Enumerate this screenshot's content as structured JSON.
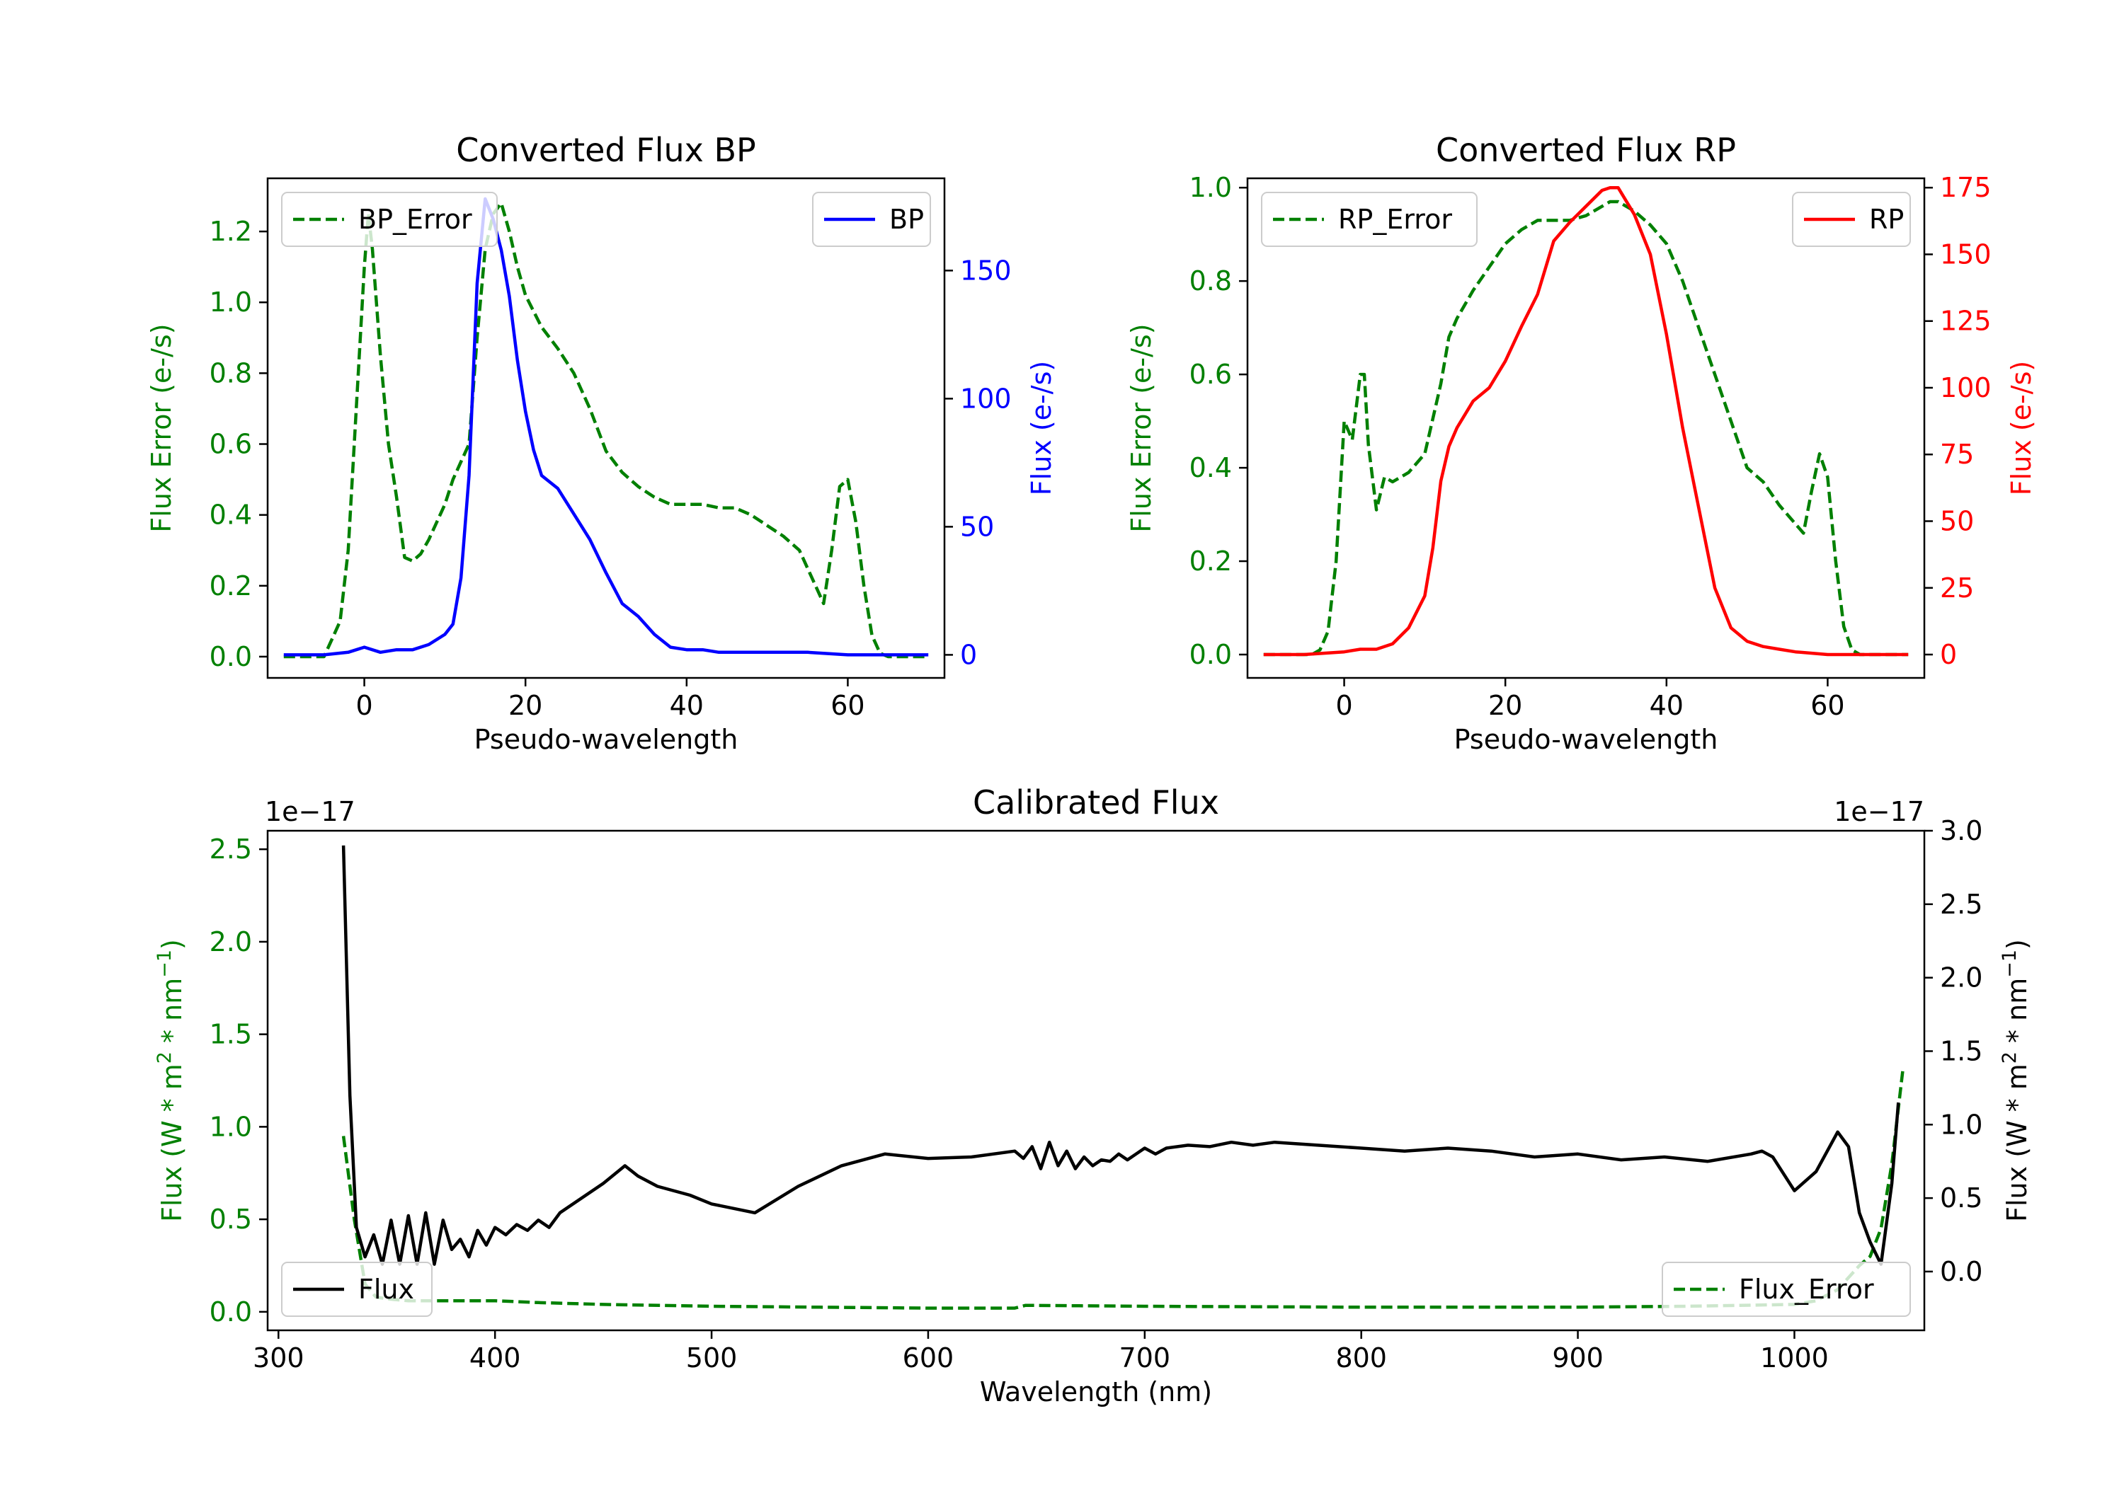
{
  "chart_data": [
    {
      "type": "line",
      "title": "Converted Flux BP",
      "xlabel": "Pseudo-wavelength",
      "xlim": [
        -12,
        72
      ],
      "xticks": [
        0,
        20,
        40,
        60
      ],
      "left_axis": {
        "label": "Flux Error (e-/s)",
        "color": "#008000",
        "ylim": [
          -0.06,
          1.35
        ],
        "ticks": [
          "0.0",
          "0.2",
          "0.4",
          "0.6",
          "0.8",
          "1.0",
          "1.2"
        ],
        "tick_values": [
          0,
          0.2,
          0.4,
          0.6,
          0.8,
          1.0,
          1.2
        ]
      },
      "right_axis": {
        "label": "Flux (e-/s)",
        "color": "#0000ff",
        "ylim": [
          -9,
          186
        ],
        "ticks": [
          "0",
          "50",
          "100",
          "150"
        ],
        "tick_values": [
          0,
          50,
          100,
          150
        ]
      },
      "series": [
        {
          "name": "BP_Error",
          "axis": "left",
          "color": "#008000",
          "style": "dashed",
          "x": [
            -10,
            -5,
            -3,
            -2,
            -1,
            0,
            0.5,
            1,
            2,
            3,
            4,
            5,
            6,
            7,
            8,
            9,
            10,
            11,
            12,
            13,
            14,
            15,
            16,
            17,
            18,
            19,
            20,
            22,
            24,
            26,
            28,
            30,
            32,
            34,
            36,
            38,
            40,
            42,
            44,
            46,
            48,
            50,
            52,
            54,
            56,
            57,
            58,
            59,
            60,
            61,
            62,
            63,
            64,
            65,
            70
          ],
          "values": [
            0,
            0,
            0.1,
            0.3,
            0.7,
            1.1,
            1.25,
            1.15,
            0.85,
            0.6,
            0.45,
            0.28,
            0.27,
            0.29,
            0.33,
            0.38,
            0.43,
            0.5,
            0.55,
            0.6,
            0.9,
            1.15,
            1.25,
            1.28,
            1.2,
            1.1,
            1.02,
            0.93,
            0.87,
            0.8,
            0.7,
            0.58,
            0.52,
            0.48,
            0.45,
            0.43,
            0.43,
            0.43,
            0.42,
            0.42,
            0.4,
            0.37,
            0.34,
            0.3,
            0.2,
            0.15,
            0.3,
            0.48,
            0.5,
            0.38,
            0.2,
            0.06,
            0.01,
            0,
            0
          ]
        },
        {
          "name": "BP",
          "axis": "right",
          "color": "#0000ff",
          "style": "solid",
          "x": [
            -10,
            -5,
            -2,
            0,
            2,
            4,
            6,
            8,
            10,
            11,
            12,
            13,
            14,
            15,
            16,
            17,
            18,
            19,
            20,
            21,
            22,
            24,
            26,
            28,
            30,
            32,
            34,
            36,
            38,
            40,
            42,
            44,
            46,
            48,
            50,
            55,
            60,
            65,
            70
          ],
          "values": [
            0,
            0,
            1,
            3,
            1,
            2,
            2,
            4,
            8,
            12,
            30,
            70,
            145,
            178,
            170,
            158,
            140,
            115,
            95,
            80,
            70,
            65,
            55,
            45,
            32,
            20,
            15,
            8,
            3,
            2,
            2,
            1,
            1,
            1,
            1,
            1,
            0,
            0,
            0
          ]
        }
      ],
      "legend": [
        {
          "label": "BP_Error",
          "placement": "upper left"
        },
        {
          "label": "BP",
          "placement": "upper right"
        }
      ]
    },
    {
      "type": "line",
      "title": "Converted Flux RP",
      "xlabel": "Pseudo-wavelength",
      "xlim": [
        -12,
        72
      ],
      "xticks": [
        0,
        20,
        40,
        60
      ],
      "left_axis": {
        "label": "Flux Error (e-/s)",
        "color": "#008000",
        "ylim": [
          -0.05,
          1.02
        ],
        "ticks": [
          "0.0",
          "0.2",
          "0.4",
          "0.6",
          "0.8",
          "1.0"
        ],
        "tick_values": [
          0,
          0.2,
          0.4,
          0.6,
          0.8,
          1.0
        ]
      },
      "right_axis": {
        "label": "Flux (e-/s)",
        "color": "#ff0000",
        "ylim": [
          -8.75,
          178.5
        ],
        "ticks": [
          "0",
          "25",
          "50",
          "75",
          "100",
          "125",
          "150",
          "175"
        ],
        "tick_values": [
          0,
          25,
          50,
          75,
          100,
          125,
          150,
          175
        ]
      },
      "series": [
        {
          "name": "RP_Error",
          "axis": "left",
          "color": "#008000",
          "style": "dashed",
          "x": [
            -10,
            -4,
            -3,
            -2,
            -1,
            0,
            1,
            2,
            2.5,
            3,
            4,
            5,
            6,
            8,
            10,
            12,
            13,
            14,
            16,
            18,
            20,
            22,
            24,
            26,
            28,
            30,
            32,
            33,
            34,
            36,
            38,
            40,
            42,
            44,
            46,
            48,
            50,
            52,
            54,
            56,
            57,
            58,
            59,
            60,
            61,
            62,
            63,
            64,
            65,
            70
          ],
          "values": [
            0,
            0,
            0.01,
            0.05,
            0.2,
            0.5,
            0.46,
            0.6,
            0.6,
            0.45,
            0.31,
            0.38,
            0.37,
            0.39,
            0.43,
            0.58,
            0.68,
            0.72,
            0.78,
            0.83,
            0.88,
            0.91,
            0.93,
            0.93,
            0.93,
            0.94,
            0.96,
            0.97,
            0.97,
            0.95,
            0.92,
            0.88,
            0.8,
            0.7,
            0.6,
            0.5,
            0.4,
            0.37,
            0.32,
            0.28,
            0.26,
            0.35,
            0.43,
            0.38,
            0.2,
            0.06,
            0.01,
            0,
            0,
            0
          ]
        },
        {
          "name": "RP",
          "axis": "right",
          "color": "#ff0000",
          "style": "solid",
          "x": [
            -10,
            -5,
            0,
            2,
            4,
            6,
            8,
            10,
            11,
            12,
            13,
            14,
            16,
            18,
            20,
            22,
            24,
            26,
            28,
            30,
            32,
            33,
            34,
            36,
            38,
            40,
            42,
            44,
            46,
            48,
            50,
            52,
            54,
            56,
            60,
            65,
            70
          ],
          "values": [
            0,
            0,
            1,
            2,
            2,
            4,
            10,
            22,
            40,
            65,
            78,
            85,
            95,
            100,
            110,
            123,
            135,
            155,
            162,
            168,
            174,
            175,
            175,
            165,
            150,
            120,
            85,
            55,
            25,
            10,
            5,
            3,
            2,
            1,
            0,
            0,
            0
          ]
        }
      ],
      "legend": [
        {
          "label": "RP_Error",
          "placement": "upper left"
        },
        {
          "label": "RP",
          "placement": "upper right"
        }
      ]
    },
    {
      "type": "line",
      "title": "Calibrated Flux",
      "xlabel": "Wavelength (nm)",
      "xlim": [
        295,
        1060
      ],
      "xticks": [
        300,
        400,
        500,
        600,
        700,
        800,
        900,
        1000
      ],
      "left_axis": {
        "label_parts": [
          "Flux (W * m",
          "2",
          " * nm",
          "−1",
          ")"
        ],
        "color": "#008000",
        "offset_text": "1e−17",
        "ylim": [
          -0.1,
          2.6
        ],
        "ticks": [
          "0.0",
          "0.5",
          "1.0",
          "1.5",
          "2.0",
          "2.5"
        ],
        "tick_values": [
          0,
          0.5,
          1.0,
          1.5,
          2.0,
          2.5
        ]
      },
      "right_axis": {
        "label_parts": [
          "Flux (W * m",
          "2",
          " * nm",
          "−1",
          ")"
        ],
        "color": "#000000",
        "offset_text": "1e−17",
        "ylim": [
          -0.4,
          3.0
        ],
        "ticks": [
          "0.0",
          "0.5",
          "1.0",
          "1.5",
          "2.0",
          "2.5",
          "3.0"
        ],
        "tick_values": [
          0,
          0.5,
          1.0,
          1.5,
          2.0,
          2.5,
          3.0
        ]
      },
      "series": [
        {
          "name": "Flux_Error",
          "axis": "left",
          "color": "#008000",
          "style": "dashed",
          "x": [
            330,
            335,
            340,
            345,
            350,
            360,
            380,
            400,
            420,
            450,
            500,
            550,
            600,
            640,
            645,
            700,
            800,
            900,
            950,
            1000,
            1010,
            1020,
            1030,
            1035,
            1040,
            1045,
            1050
          ],
          "values": [
            0.95,
            0.5,
            0.15,
            0.08,
            0.07,
            0.06,
            0.06,
            0.06,
            0.05,
            0.04,
            0.03,
            0.025,
            0.02,
            0.02,
            0.035,
            0.03,
            0.025,
            0.025,
            0.03,
            0.04,
            0.06,
            0.12,
            0.25,
            0.3,
            0.45,
            0.8,
            1.3
          ]
        },
        {
          "name": "Flux",
          "axis": "right",
          "color": "#000000",
          "style": "solid",
          "x": [
            330,
            333,
            336,
            340,
            344,
            348,
            352,
            356,
            360,
            364,
            368,
            372,
            376,
            380,
            384,
            388,
            392,
            396,
            400,
            405,
            410,
            415,
            420,
            425,
            430,
            440,
            450,
            460,
            466,
            475,
            490,
            500,
            520,
            540,
            560,
            580,
            600,
            620,
            640,
            644,
            648,
            652,
            656,
            660,
            664,
            668,
            672,
            676,
            680,
            684,
            688,
            692,
            696,
            700,
            705,
            710,
            720,
            730,
            740,
            750,
            760,
            780,
            800,
            820,
            840,
            860,
            880,
            900,
            920,
            940,
            960,
            980,
            985,
            990,
            1000,
            1010,
            1020,
            1025,
            1030,
            1035,
            1040,
            1045,
            1048
          ],
          "values": [
            2.9,
            1.2,
            0.3,
            0.1,
            0.25,
            0.05,
            0.35,
            0.05,
            0.38,
            0.05,
            0.4,
            0.05,
            0.35,
            0.15,
            0.22,
            0.1,
            0.28,
            0.18,
            0.3,
            0.25,
            0.32,
            0.28,
            0.35,
            0.3,
            0.4,
            0.5,
            0.6,
            0.72,
            0.65,
            0.58,
            0.52,
            0.46,
            0.4,
            0.58,
            0.72,
            0.8,
            0.77,
            0.78,
            0.82,
            0.77,
            0.85,
            0.7,
            0.88,
            0.72,
            0.82,
            0.7,
            0.78,
            0.72,
            0.76,
            0.75,
            0.8,
            0.76,
            0.8,
            0.84,
            0.8,
            0.84,
            0.86,
            0.85,
            0.88,
            0.86,
            0.88,
            0.86,
            0.84,
            0.82,
            0.84,
            0.82,
            0.78,
            0.8,
            0.76,
            0.78,
            0.75,
            0.8,
            0.82,
            0.78,
            0.55,
            0.68,
            0.95,
            0.85,
            0.4,
            0.2,
            0.05,
            0.6,
            1.15
          ]
        }
      ],
      "legend": [
        {
          "label": "Flux",
          "placement": "lower left"
        },
        {
          "label": "Flux_Error",
          "placement": "lower right"
        }
      ]
    }
  ]
}
